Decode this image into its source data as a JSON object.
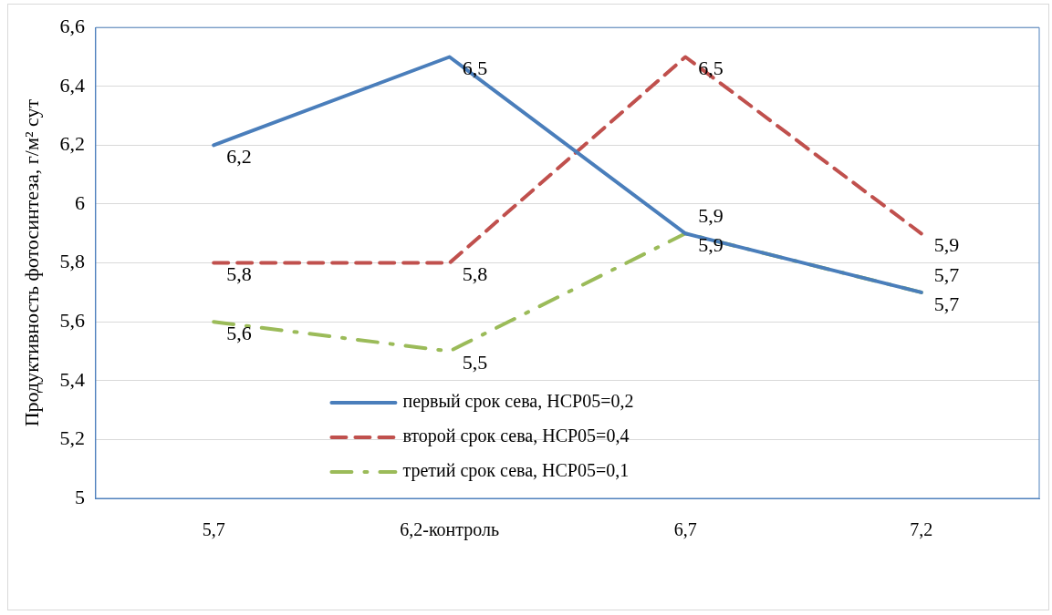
{
  "chart_data": {
    "type": "line",
    "ylabel": "Продуктивность фотосинтеза, г/м² сут",
    "categories": [
      "5,7",
      "6,2-контроль",
      "6,7",
      "7,2"
    ],
    "series": [
      {
        "name": "первый срок сева, НСР05=0,2",
        "color": "#4a7ebb",
        "line_style": "solid",
        "values": [
          6.2,
          6.5,
          5.9,
          5.7
        ],
        "value_labels": [
          "6,2",
          "6,5",
          "5,9",
          "5,7"
        ]
      },
      {
        "name": "второй срок сева, НСР05=0,4",
        "color": "#c0504d",
        "line_style": "dashed",
        "values": [
          5.8,
          5.8,
          6.5,
          5.9
        ],
        "value_labels": [
          "5,8",
          "5,8",
          "6,5",
          "5,9"
        ]
      },
      {
        "name": "третий срок сева, НСР05=0,1",
        "color": "#9bbb59",
        "line_style": "dashdot",
        "values": [
          5.6,
          5.5,
          5.9,
          5.7
        ],
        "value_labels": [
          "5,6",
          "5,5",
          "5,9",
          "5,7"
        ]
      }
    ],
    "ylim": [
      5,
      6.6
    ],
    "yticks": [
      5,
      {
        "value": 5.2,
        "label": "5,2"
      },
      {
        "value": 5.4,
        "label": "5,4"
      },
      {
        "value": 5.6,
        "label": "5,6"
      },
      {
        "value": 5.8,
        "label": "5,8"
      },
      6,
      {
        "value": 6.2,
        "label": "6,2"
      },
      {
        "value": 6.4,
        "label": "6,4"
      },
      {
        "value": 6.6,
        "label": "6,6"
      }
    ],
    "grid": "y",
    "legend": "bottom",
    "marker": "none"
  }
}
